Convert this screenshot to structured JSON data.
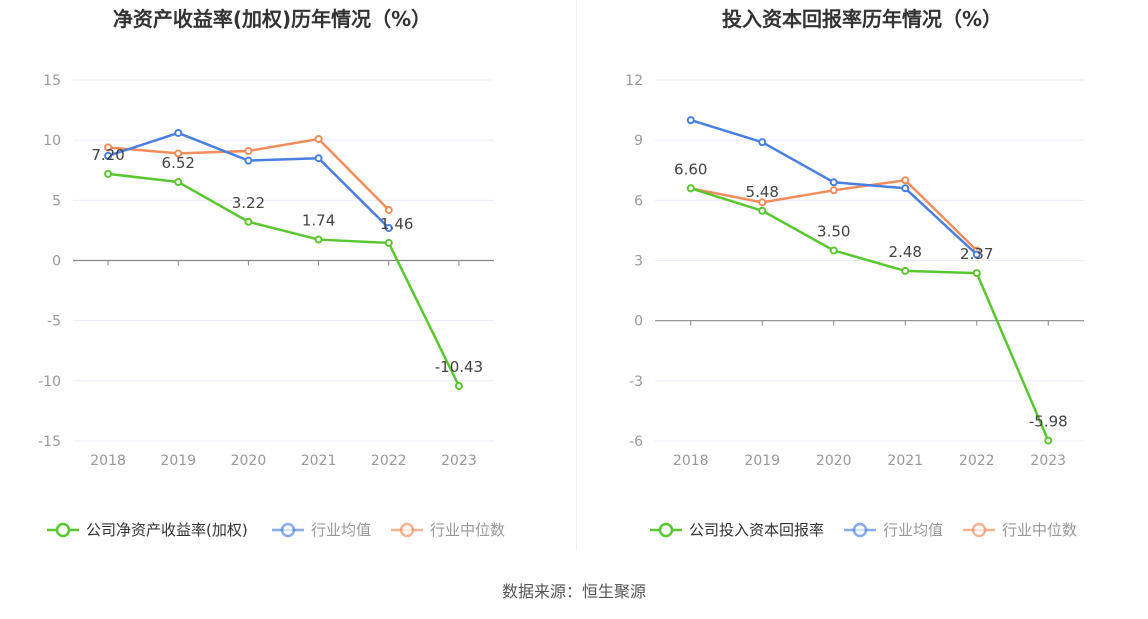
{
  "source_text": "数据来源：恒生聚源",
  "colors": {
    "company": "#5ac731",
    "average": "#4a7fe0",
    "median": "#f28c5c",
    "grid": "#e8ebf5",
    "axis": "#888888",
    "tick_text": "#999999",
    "label_text": "#444444"
  },
  "chart_data": [
    {
      "type": "line",
      "title": "净资产收益率(加权)历年情况（%）",
      "categories": [
        "2018",
        "2019",
        "2020",
        "2021",
        "2022",
        "2023"
      ],
      "ylim": [
        -15,
        15
      ],
      "yticks": [
        15,
        10,
        5,
        0,
        -5,
        -10,
        -15
      ],
      "ytick_labels": [
        "15",
        "10",
        "5",
        "0",
        "-5",
        "-10",
        "-15"
      ],
      "grid": true,
      "legend_position": "bottom",
      "series": [
        {
          "name": "公司净资产收益率(加权)",
          "key": "company",
          "values": [
            7.2,
            6.52,
            3.22,
            1.74,
            1.46,
            -10.43
          ],
          "labels": [
            "7.20",
            "6.52",
            "3.22",
            "1.74",
            "1.46",
            "-10.43"
          ]
        },
        {
          "name": "行业均值",
          "key": "average",
          "values": [
            8.7,
            10.6,
            8.3,
            8.5,
            2.7,
            null
          ]
        },
        {
          "name": "行业中位数",
          "key": "median",
          "values": [
            9.4,
            8.9,
            9.1,
            10.1,
            4.2,
            null
          ]
        }
      ]
    },
    {
      "type": "line",
      "title": "投入资本回报率历年情况（%）",
      "categories": [
        "2018",
        "2019",
        "2020",
        "2021",
        "2022",
        "2023"
      ],
      "ylim": [
        -6,
        12
      ],
      "yticks": [
        12,
        9,
        6,
        3,
        0,
        -3,
        -6
      ],
      "ytick_labels": [
        "12",
        "9",
        "6",
        "3",
        "0",
        "-3",
        "-6"
      ],
      "grid": true,
      "legend_position": "bottom",
      "series": [
        {
          "name": "公司投入资本回报率",
          "key": "company",
          "values": [
            6.6,
            5.48,
            3.5,
            2.48,
            2.37,
            -5.98
          ],
          "labels": [
            "6.60",
            "5.48",
            "3.50",
            "2.48",
            "2.37",
            "-5.98"
          ]
        },
        {
          "name": "行业均值",
          "key": "average",
          "values": [
            10.0,
            8.9,
            6.9,
            6.6,
            3.3,
            null
          ]
        },
        {
          "name": "行业中位数",
          "key": "median",
          "values": [
            6.6,
            5.9,
            6.5,
            7.0,
            3.5,
            null
          ]
        }
      ]
    }
  ]
}
